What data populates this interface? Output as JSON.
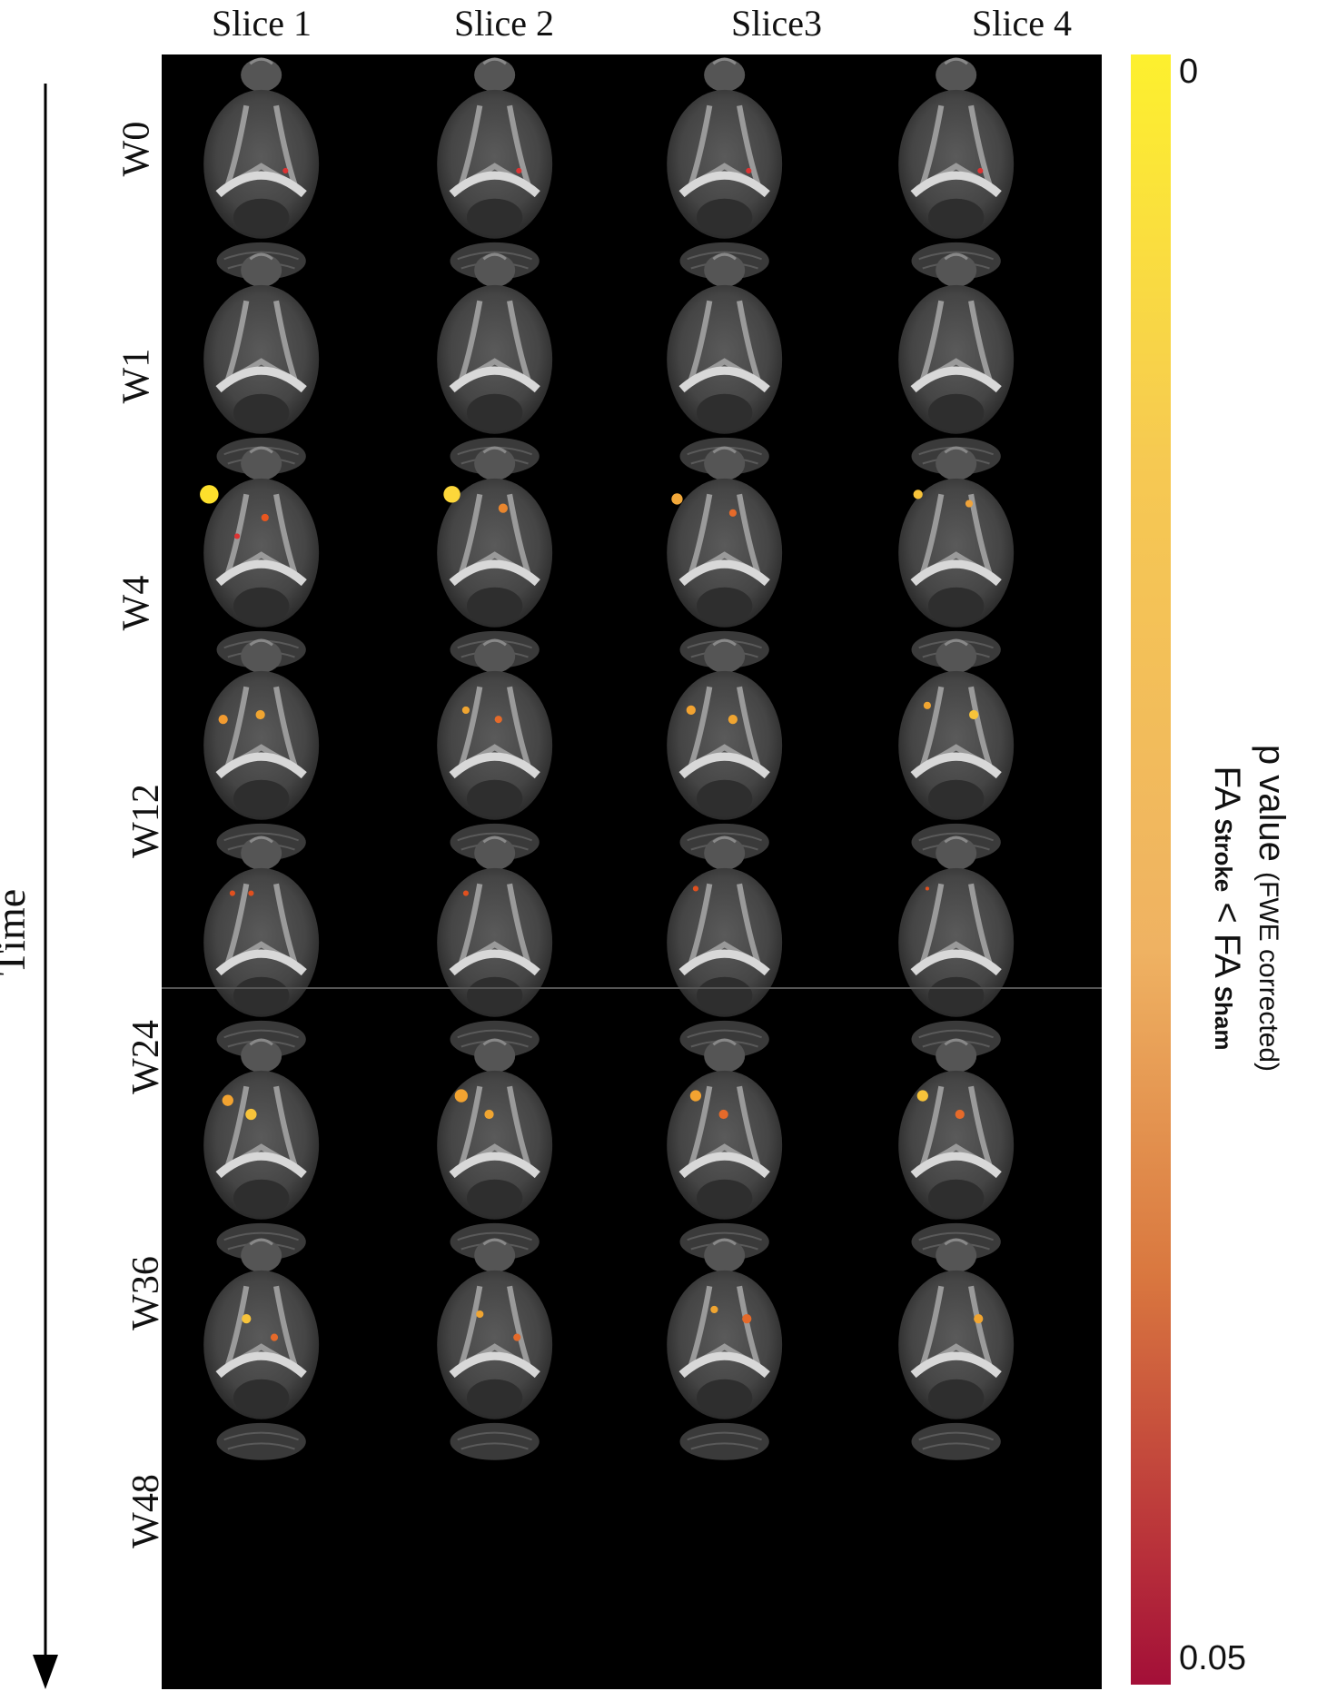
{
  "columns": [
    {
      "label": "Slice 1"
    },
    {
      "label": "Slice 2"
    },
    {
      "label": "Slice3"
    },
    {
      "label": "Slice 4"
    }
  ],
  "rows": [
    {
      "label": "W0"
    },
    {
      "label": "W1"
    },
    {
      "label": "W4"
    },
    {
      "label": "W12"
    },
    {
      "label": "W24"
    },
    {
      "label": "W36"
    },
    {
      "label": "W48"
    }
  ],
  "axis": {
    "label": "Time"
  },
  "colorbar": {
    "top_tick": "0",
    "bottom_tick": "0.05",
    "label_main": "p value",
    "label_small": "(FWE corrected)",
    "comparison_fa1": "FA",
    "comparison_sub1": "Stroke",
    "comparison_op": "<",
    "comparison_fa2": "FA",
    "comparison_sub2": "Sham",
    "gradient_colors": [
      "#fdf02e",
      "#f6c952",
      "#efb262",
      "#d9773f",
      "#b8303a",
      "#a30f38"
    ]
  }
}
